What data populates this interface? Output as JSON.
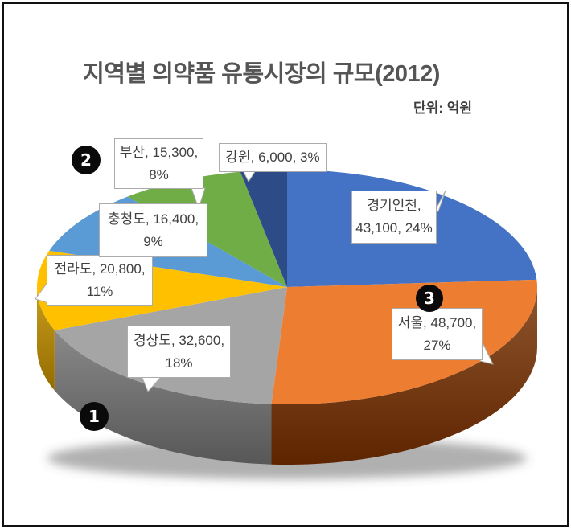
{
  "header": {
    "title": "지역별 의약품 유통시장의 규모(2012)",
    "unit_label": "단위: 억원"
  },
  "chart_data": {
    "type": "pie",
    "style": "3d-pie",
    "title": "지역별 의약품 유통시장의 규모(2012)",
    "unit": "억원",
    "start_angle_deg": 0,
    "direction": "clockwise",
    "slices": [
      {
        "name": "경기인천",
        "value": 43100,
        "pct": 24,
        "color": "#4472C4",
        "side_color": "#2E549B",
        "label_line1": "경기인천,",
        "label_line2": "43,100, 24%"
      },
      {
        "name": "서울",
        "value": 48700,
        "pct": 27,
        "color": "#ED7D31",
        "side_color": "#71380F",
        "label_line1": "서울, 48,700,",
        "label_line2": "27%"
      },
      {
        "name": "경상도",
        "value": 32600,
        "pct": 18,
        "color": "#A5A5A5",
        "side_color": "#6B6B6B",
        "label_line1": "경상도, 32,600,",
        "label_line2": "18%"
      },
      {
        "name": "전라도",
        "value": 20800,
        "pct": 11,
        "color": "#FFC000",
        "side_color": "#A97F00",
        "label_line1": "전라도, 20,800,",
        "label_line2": "11%"
      },
      {
        "name": "충청도",
        "value": 16400,
        "pct": 9,
        "color": "#5B9BD5",
        "side_color": "#3A6F9F",
        "label_line1": "충청도, 16,400,",
        "label_line2": "9%"
      },
      {
        "name": "부산",
        "value": 15300,
        "pct": 8,
        "color": "#70AD47",
        "side_color": "#4F7A31",
        "label_line1": "부산, 15,300,",
        "label_line2": "8%"
      },
      {
        "name": "강원",
        "value": 6000,
        "pct": 3,
        "color": "#2D4B87",
        "side_color": "#1D325C",
        "label_line1": "강원, 6,000, 3%",
        "label_line2": ""
      }
    ]
  },
  "annotations": {
    "badges": [
      {
        "label": "1"
      },
      {
        "label": "2"
      },
      {
        "label": "3"
      }
    ]
  }
}
